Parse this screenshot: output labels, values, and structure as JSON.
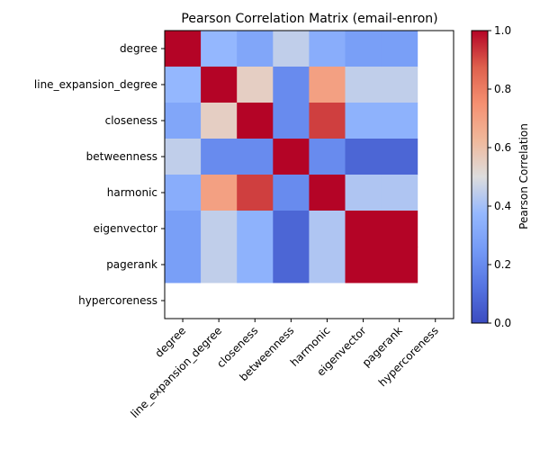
{
  "chart_data": {
    "type": "heatmap",
    "title": "Pearson Correlation Matrix (email-enron)",
    "row_labels": [
      "degree",
      "line_expansion_degree",
      "closeness",
      "betweenness",
      "harmonic",
      "eigenvector",
      "pagerank",
      "hypercoreness"
    ],
    "col_labels": [
      "degree",
      "line_expansion_degree",
      "closeness",
      "betweenness",
      "harmonic",
      "eigenvector",
      "pagerank",
      "hypercoreness"
    ],
    "values": [
      [
        1.0,
        0.37,
        0.3,
        0.45,
        0.33,
        0.27,
        0.27,
        null
      ],
      [
        0.37,
        1.0,
        0.55,
        0.2,
        0.7,
        0.45,
        0.45,
        null
      ],
      [
        0.3,
        0.55,
        1.0,
        0.2,
        0.92,
        0.35,
        0.35,
        null
      ],
      [
        0.45,
        0.2,
        0.2,
        1.0,
        0.2,
        0.08,
        0.08,
        null
      ],
      [
        0.33,
        0.7,
        0.92,
        0.2,
        1.0,
        0.42,
        0.42,
        null
      ],
      [
        0.27,
        0.45,
        0.35,
        0.08,
        0.42,
        1.0,
        1.0,
        null
      ],
      [
        0.27,
        0.45,
        0.35,
        0.08,
        0.42,
        1.0,
        1.0,
        null
      ],
      [
        null,
        null,
        null,
        null,
        null,
        null,
        null,
        null
      ]
    ],
    "colormap": "coolwarm",
    "vmin": 0.0,
    "vmax": 1.0,
    "colorbar": {
      "label": "Pearson Correlation",
      "ticks": [
        "0.0",
        "0.2",
        "0.4",
        "0.6",
        "0.8",
        "1.0"
      ]
    }
  }
}
